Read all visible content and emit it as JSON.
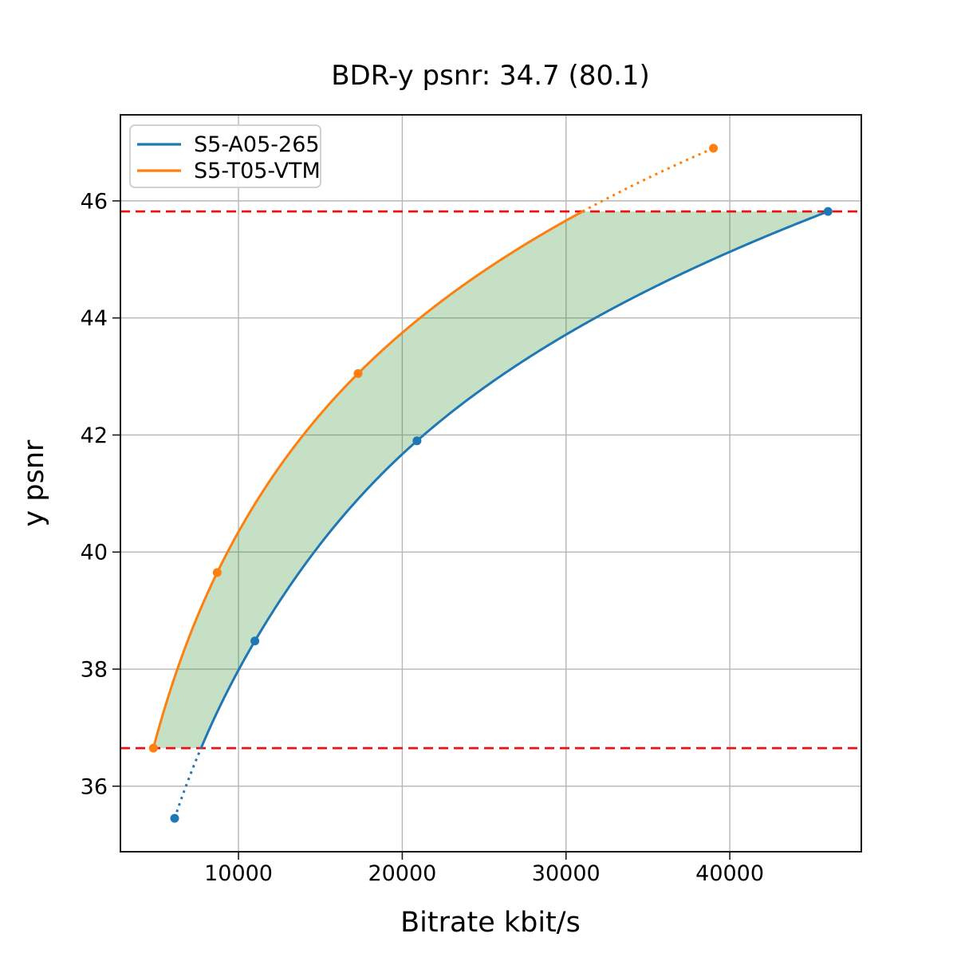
{
  "chart_data": {
    "type": "line",
    "title": "BDR-y psnr: 34.7 (80.1)",
    "xlabel": "Bitrate kbit/s",
    "ylabel": "y psnr",
    "xlim": [
      2790,
      48030
    ],
    "ylim": [
      34.88,
      47.47
    ],
    "xticks": [
      10000,
      20000,
      30000,
      40000
    ],
    "yticks": [
      36,
      38,
      40,
      42,
      44,
      46
    ],
    "grid": true,
    "grid_color": "#b6b6b6",
    "axes_color": "#1a1a1a",
    "x_scale_interpolation": "log",
    "legend_position": "upper-left",
    "series": [
      {
        "name": "S5-A05-265",
        "color": "#1f77b4",
        "points": [
          [
            6100,
            35.45
          ],
          [
            11000,
            38.48
          ],
          [
            20900,
            41.9
          ],
          [
            46000,
            45.82
          ]
        ]
      },
      {
        "name": "S5-T05-VTM",
        "color": "#ff7f0e",
        "points": [
          [
            4800,
            36.65
          ],
          [
            8700,
            39.65
          ],
          [
            17300,
            43.05
          ],
          [
            39000,
            46.9
          ]
        ]
      }
    ],
    "overlap_psnr_range": [
      36.65,
      45.82
    ],
    "hlines": [
      {
        "y": 36.65,
        "color": "#ee1111",
        "style": "dashed"
      },
      {
        "y": 45.82,
        "color": "#ee1111",
        "style": "dashed"
      }
    ],
    "fill_between": {
      "color": "#2e8b2e",
      "opacity": 0.27
    }
  }
}
